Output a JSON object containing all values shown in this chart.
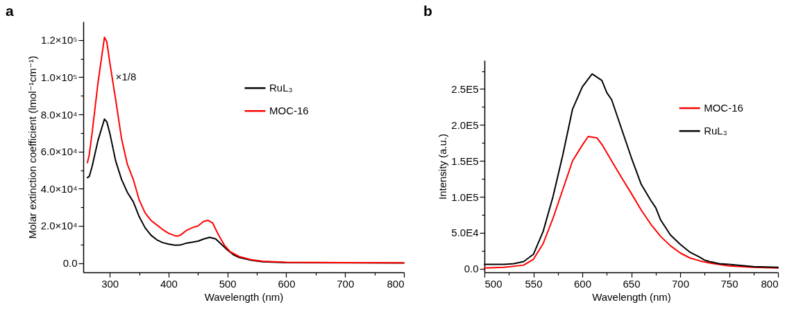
{
  "chart_data": [
    {
      "type": "line",
      "title": "a",
      "xlabel": "Wavelength (nm)",
      "ylabel": "Molar extinction coefficient (lmol⁻¹cm⁻¹)",
      "xlim": [
        255,
        800
      ],
      "ylim": [
        -5000,
        130000
      ],
      "xticks": [
        300,
        {
          "value": 350,
          "label": null
        },
        400,
        {
          "value": 450,
          "label": null
        },
        500,
        {
          "value": 550,
          "label": null
        },
        600,
        {
          "value": 650,
          "label": null
        },
        700,
        {
          "value": 750,
          "label": null
        },
        800
      ],
      "yticks": [
        {
          "value": 0,
          "label": "0.0"
        },
        {
          "value": 10000,
          "label": null
        },
        {
          "value": 20000,
          "label": "2.0×10⁴"
        },
        {
          "value": 30000,
          "label": null
        },
        {
          "value": 40000,
          "label": "4.0×10⁴"
        },
        {
          "value": 50000,
          "label": null
        },
        {
          "value": 60000,
          "label": "6.0×10⁴"
        },
        {
          "value": 70000,
          "label": null
        },
        {
          "value": 80000,
          "label": "8.0×10⁴"
        },
        {
          "value": 90000,
          "label": null
        },
        {
          "value": 100000,
          "label": "1.0×10⁵"
        },
        {
          "value": 110000,
          "label": null
        },
        {
          "value": 120000,
          "label": "1.2×10⁵"
        }
      ],
      "grid": false,
      "legend": "top right",
      "line_style": "solid",
      "marker": "none",
      "annotations": [
        {
          "text": "×1/8",
          "x": 310,
          "y": 100000
        }
      ],
      "series": [
        {
          "name": "RuL₃",
          "color": "#000000",
          "x": [
            262,
            265,
            270,
            280,
            291,
            295,
            300,
            310,
            320,
            330,
            340,
            350,
            360,
            370,
            380,
            390,
            400,
            410,
            420,
            430,
            440,
            450,
            460,
            470,
            480,
            490,
            500,
            510,
            520,
            540,
            560,
            600,
            800
          ],
          "values": [
            46000,
            46500,
            52000,
            66000,
            77500,
            76000,
            70000,
            55000,
            45000,
            38000,
            33000,
            25000,
            19000,
            15000,
            12500,
            11000,
            10200,
            9600,
            9700,
            10700,
            11200,
            11800,
            13000,
            13800,
            13000,
            10000,
            7000,
            4500,
            3000,
            1500,
            700,
            200,
            0
          ]
        },
        {
          "name": "MOC-16",
          "color": "#ff0000",
          "x": [
            262,
            265,
            270,
            280,
            291,
            295,
            300,
            310,
            320,
            330,
            340,
            350,
            360,
            370,
            380,
            390,
            400,
            410,
            415,
            420,
            430,
            440,
            450,
            460,
            467,
            475,
            485,
            495,
            505,
            520,
            540,
            560,
            600,
            700,
            800
          ],
          "values": [
            54000,
            58000,
            70000,
            97000,
            121500,
            119000,
            108000,
            88000,
            67000,
            53000,
            45000,
            34000,
            27000,
            23000,
            20500,
            18000,
            16000,
            14800,
            14500,
            15000,
            17500,
            19000,
            20000,
            22500,
            23000,
            21500,
            15000,
            9500,
            6000,
            3500,
            1800,
            1000,
            400,
            200,
            100
          ]
        }
      ]
    },
    {
      "type": "line",
      "title": "b",
      "xlabel": "Wavelength (nm)",
      "ylabel": "Intensity (a.u.)",
      "xlim": [
        500,
        800
      ],
      "ylim": [
        -5000,
        290000
      ],
      "xticks": [
        500,
        {
          "value": 525,
          "label": null
        },
        550,
        {
          "value": 575,
          "label": null
        },
        600,
        {
          "value": 625,
          "label": null
        },
        650,
        {
          "value": 675,
          "label": null
        },
        700,
        {
          "value": 725,
          "label": null
        },
        750,
        {
          "value": 775,
          "label": null
        },
        800
      ],
      "yticks": [
        {
          "value": 0,
          "label": "0.0"
        },
        {
          "value": 25000,
          "label": null
        },
        {
          "value": 50000,
          "label": "5.0E4"
        },
        {
          "value": 75000,
          "label": null
        },
        {
          "value": 100000,
          "label": "1.0E5"
        },
        {
          "value": 125000,
          "label": null
        },
        {
          "value": 150000,
          "label": "1.5E5"
        },
        {
          "value": 175000,
          "label": null
        },
        {
          "value": 200000,
          "label": "2.0E5"
        },
        {
          "value": 225000,
          "label": null
        },
        {
          "value": 250000,
          "label": "2.5E5"
        },
        {
          "value": 275000,
          "label": null
        }
      ],
      "grid": false,
      "legend": "right",
      "line_style": "solid",
      "marker": "none",
      "series": [
        {
          "name": "MOC-16",
          "color": "#ff0000",
          "x": [
            500,
            520,
            540,
            550,
            560,
            570,
            580,
            590,
            600,
            606,
            615,
            620,
            630,
            640,
            650,
            660,
            670,
            680,
            690,
            700,
            710,
            720,
            730,
            750,
            775,
            800
          ],
          "values": [
            1000,
            2000,
            5000,
            13000,
            35000,
            70000,
            110000,
            150000,
            172000,
            184000,
            182000,
            173000,
            150000,
            127000,
            105000,
            82000,
            62000,
            45000,
            32000,
            22000,
            15000,
            11000,
            8000,
            4000,
            2000,
            1000
          ]
        },
        {
          "name": "RuL₃",
          "color": "#000000",
          "x": [
            500,
            520,
            530,
            540,
            550,
            560,
            570,
            580,
            590,
            600,
            610,
            620,
            625,
            630,
            640,
            650,
            660,
            670,
            675,
            680,
            690,
            700,
            710,
            720,
            725,
            730,
            740,
            750,
            775,
            800
          ],
          "values": [
            6000,
            6000,
            7000,
            10000,
            20000,
            52000,
            100000,
            158000,
            222000,
            253000,
            271000,
            262000,
            245000,
            235000,
            195000,
            155000,
            118000,
            95000,
            85000,
            68000,
            47000,
            34000,
            23000,
            16000,
            12000,
            10000,
            7000,
            6000,
            3000,
            2000
          ]
        }
      ]
    }
  ]
}
